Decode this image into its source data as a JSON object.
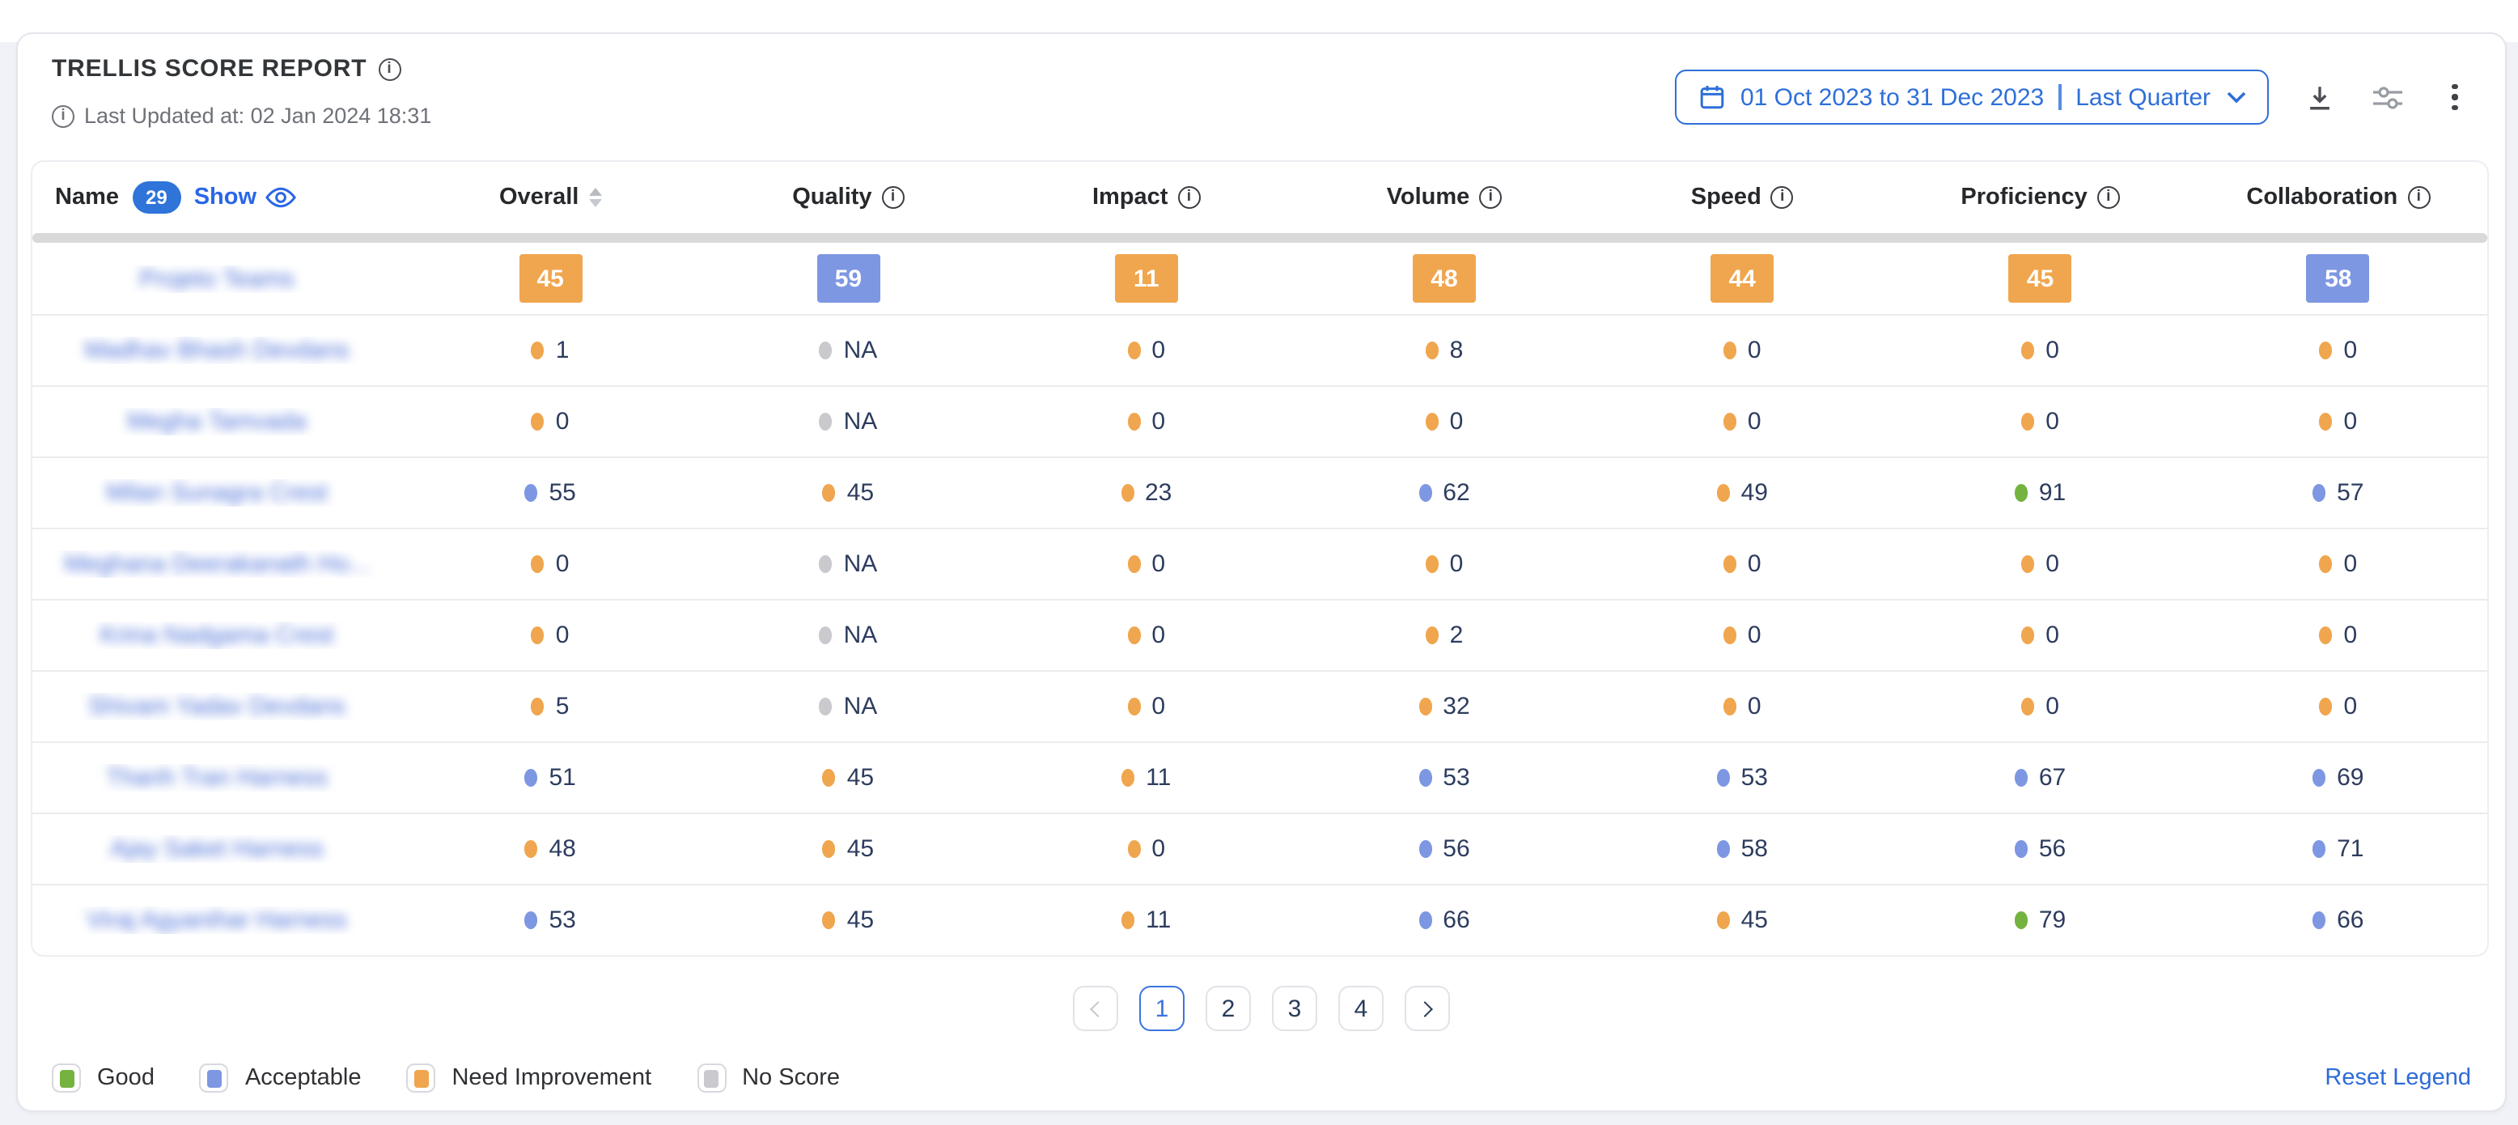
{
  "header": {
    "title": "TRELLIS SCORE REPORT",
    "last_updated": "Last Updated at: 02 Jan 2024 18:31",
    "date_range": "01 Oct 2023 to 31 Dec 2023",
    "date_preset": "Last Quarter"
  },
  "table": {
    "name_header": {
      "label": "Name",
      "count": "29",
      "show_label": "Show"
    },
    "columns": [
      {
        "label": "Overall",
        "icon": "sort"
      },
      {
        "label": "Quality",
        "icon": "info"
      },
      {
        "label": "Impact",
        "icon": "info"
      },
      {
        "label": "Volume",
        "icon": "info"
      },
      {
        "label": "Speed",
        "icon": "info"
      },
      {
        "label": "Proficiency",
        "icon": "info"
      },
      {
        "label": "Collaboration",
        "icon": "info"
      }
    ],
    "rows": [
      {
        "name": "Projeto Teams",
        "style": "badge",
        "cells": [
          {
            "value": "45",
            "status": "need-improvement"
          },
          {
            "value": "59",
            "status": "acceptable"
          },
          {
            "value": "11",
            "status": "need-improvement"
          },
          {
            "value": "48",
            "status": "need-improvement"
          },
          {
            "value": "44",
            "status": "need-improvement"
          },
          {
            "value": "45",
            "status": "need-improvement"
          },
          {
            "value": "58",
            "status": "acceptable"
          }
        ]
      },
      {
        "name": "Madhav Bhash Devdans",
        "style": "dot",
        "cells": [
          {
            "value": "1",
            "status": "need-improvement"
          },
          {
            "value": "NA",
            "status": "no-score"
          },
          {
            "value": "0",
            "status": "need-improvement"
          },
          {
            "value": "8",
            "status": "need-improvement"
          },
          {
            "value": "0",
            "status": "need-improvement"
          },
          {
            "value": "0",
            "status": "need-improvement"
          },
          {
            "value": "0",
            "status": "need-improvement"
          }
        ]
      },
      {
        "name": "Megha Tamvada",
        "style": "dot",
        "cells": [
          {
            "value": "0",
            "status": "need-improvement"
          },
          {
            "value": "NA",
            "status": "no-score"
          },
          {
            "value": "0",
            "status": "need-improvement"
          },
          {
            "value": "0",
            "status": "need-improvement"
          },
          {
            "value": "0",
            "status": "need-improvement"
          },
          {
            "value": "0",
            "status": "need-improvement"
          },
          {
            "value": "0",
            "status": "need-improvement"
          }
        ]
      },
      {
        "name": "Milan Sunagra Crest",
        "style": "dot",
        "cells": [
          {
            "value": "55",
            "status": "acceptable"
          },
          {
            "value": "45",
            "status": "need-improvement"
          },
          {
            "value": "23",
            "status": "need-improvement"
          },
          {
            "value": "62",
            "status": "acceptable"
          },
          {
            "value": "49",
            "status": "need-improvement"
          },
          {
            "value": "91",
            "status": "good"
          },
          {
            "value": "57",
            "status": "acceptable"
          }
        ]
      },
      {
        "name": "Meghana Deerakanath Ho...",
        "style": "dot",
        "cells": [
          {
            "value": "0",
            "status": "need-improvement"
          },
          {
            "value": "NA",
            "status": "no-score"
          },
          {
            "value": "0",
            "status": "need-improvement"
          },
          {
            "value": "0",
            "status": "need-improvement"
          },
          {
            "value": "0",
            "status": "need-improvement"
          },
          {
            "value": "0",
            "status": "need-improvement"
          },
          {
            "value": "0",
            "status": "need-improvement"
          }
        ]
      },
      {
        "name": "Krina Nadgama Crest",
        "style": "dot",
        "cells": [
          {
            "value": "0",
            "status": "need-improvement"
          },
          {
            "value": "NA",
            "status": "no-score"
          },
          {
            "value": "0",
            "status": "need-improvement"
          },
          {
            "value": "2",
            "status": "need-improvement"
          },
          {
            "value": "0",
            "status": "need-improvement"
          },
          {
            "value": "0",
            "status": "need-improvement"
          },
          {
            "value": "0",
            "status": "need-improvement"
          }
        ]
      },
      {
        "name": "Shivam Yadav Devdans",
        "style": "dot",
        "cells": [
          {
            "value": "5",
            "status": "need-improvement"
          },
          {
            "value": "NA",
            "status": "no-score"
          },
          {
            "value": "0",
            "status": "need-improvement"
          },
          {
            "value": "32",
            "status": "need-improvement"
          },
          {
            "value": "0",
            "status": "need-improvement"
          },
          {
            "value": "0",
            "status": "need-improvement"
          },
          {
            "value": "0",
            "status": "need-improvement"
          }
        ]
      },
      {
        "name": "Thanh Tran Harness",
        "style": "dot",
        "cells": [
          {
            "value": "51",
            "status": "acceptable"
          },
          {
            "value": "45",
            "status": "need-improvement"
          },
          {
            "value": "11",
            "status": "need-improvement"
          },
          {
            "value": "53",
            "status": "acceptable"
          },
          {
            "value": "53",
            "status": "acceptable"
          },
          {
            "value": "67",
            "status": "acceptable"
          },
          {
            "value": "69",
            "status": "acceptable"
          }
        ]
      },
      {
        "name": "Ajay Saket Harness",
        "style": "dot",
        "cells": [
          {
            "value": "48",
            "status": "need-improvement"
          },
          {
            "value": "45",
            "status": "need-improvement"
          },
          {
            "value": "0",
            "status": "need-improvement"
          },
          {
            "value": "56",
            "status": "acceptable"
          },
          {
            "value": "58",
            "status": "acceptable"
          },
          {
            "value": "56",
            "status": "acceptable"
          },
          {
            "value": "71",
            "status": "acceptable"
          }
        ]
      },
      {
        "name": "Viraj Agyanihar Harness",
        "style": "dot",
        "cells": [
          {
            "value": "53",
            "status": "acceptable"
          },
          {
            "value": "45",
            "status": "need-improvement"
          },
          {
            "value": "11",
            "status": "need-improvement"
          },
          {
            "value": "66",
            "status": "acceptable"
          },
          {
            "value": "45",
            "status": "need-improvement"
          },
          {
            "value": "79",
            "status": "good"
          },
          {
            "value": "66",
            "status": "acceptable"
          }
        ]
      }
    ]
  },
  "status_colors": {
    "good": "#74B33F",
    "acceptable": "#7D97E2",
    "need-improvement": "#F0A64E",
    "no-score": "#C9C9CE"
  },
  "pagination": {
    "pages": [
      "1",
      "2",
      "3",
      "4"
    ],
    "active": "1"
  },
  "legend": {
    "items": [
      {
        "label": "Good",
        "status": "good"
      },
      {
        "label": "Acceptable",
        "status": "acceptable"
      },
      {
        "label": "Need Improvement",
        "status": "need-improvement"
      },
      {
        "label": "No Score",
        "status": "no-score"
      }
    ],
    "reset_label": "Reset Legend"
  }
}
